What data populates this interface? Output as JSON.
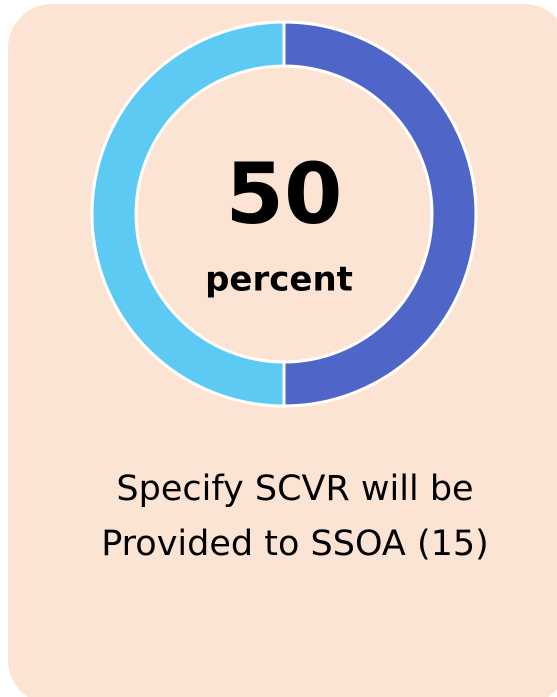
{
  "chart_data": {
    "type": "donut",
    "values": [
      50,
      50
    ],
    "colors": [
      "#4f66c8",
      "#5ccaf2"
    ],
    "center_label": "percent",
    "caption": [
      "Specify SCVR will be",
      "Provided to SSOA (15)"
    ]
  }
}
